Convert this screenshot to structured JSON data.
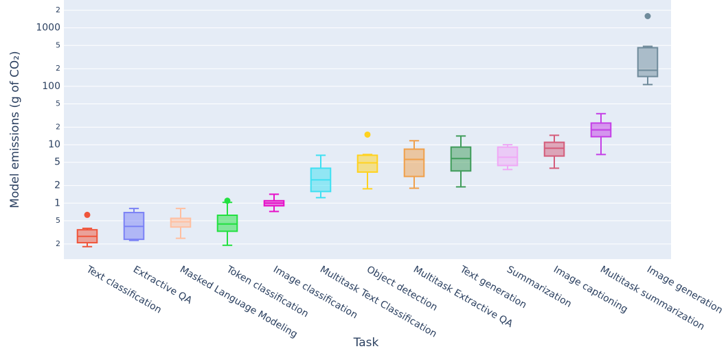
{
  "chart_data": {
    "type": "box",
    "y_label": "Model emissions (g of CO₂)",
    "x_label": "Task",
    "log_y": true,
    "grid": true,
    "ylim": [
      0.11,
      3000
    ],
    "yticks": [
      {
        "value": 0.2,
        "label": "2"
      },
      {
        "value": 0.5,
        "label": "5"
      },
      1,
      2,
      5,
      10,
      {
        "value": 20,
        "label": "2"
      },
      {
        "value": 50,
        "label": "5"
      },
      100,
      {
        "value": 200,
        "label": "2"
      },
      {
        "value": 500,
        "label": "5"
      },
      1000,
      {
        "value": 2000,
        "label": "2"
      }
    ],
    "categories": [
      "Text classification",
      "Extractive QA",
      "Masked Language Modeling",
      "Token classification",
      "Image classification",
      "Multitask Text Classification",
      "Object detection",
      "Multitask Extractive QA",
      "Text generation",
      "Summarization",
      "Image captioning",
      "Multitask summarization",
      "Image generation"
    ],
    "colors": [
      "#ef553b",
      "#7b82f5",
      "#ffbfa0",
      "#22e040",
      "#e610c8",
      "#3ee0f2",
      "#ffd21f",
      "#f0a04b",
      "#3f9c5a",
      "#f0a8f6",
      "#d45c7a",
      "#c43ee6",
      "#6f8b9b"
    ],
    "min": [
      0.18,
      0.23,
      0.25,
      0.19,
      0.72,
      1.24,
      1.76,
      1.8,
      1.9,
      3.76,
      3.96,
      6.8,
      107
    ],
    "q1": [
      0.21,
      0.24,
      0.39,
      0.33,
      0.9,
      1.58,
      3.4,
      2.86,
      3.56,
      4.4,
      6.4,
      13.7,
      147
    ],
    "median": [
      0.27,
      0.4,
      0.48,
      0.44,
      1.0,
      2.5,
      4.9,
      5.6,
      5.8,
      6.1,
      8.7,
      17.9,
      188
    ],
    "q3": [
      0.35,
      0.69,
      0.55,
      0.62,
      1.1,
      3.96,
      6.6,
      8.4,
      9.1,
      9.1,
      11,
      23.5,
      458
    ],
    "max": [
      0.37,
      0.81,
      0.81,
      1.03,
      1.42,
      6.6,
      6.8,
      11.7,
      14.1,
      10,
      14.5,
      34,
      484
    ],
    "outliers": [
      [
        0.63
      ],
      [],
      [],
      [
        1.1
      ],
      [],
      [],
      [
        14.9
      ],
      [],
      [],
      [],
      [],
      [],
      [
        1590
      ]
    ]
  }
}
